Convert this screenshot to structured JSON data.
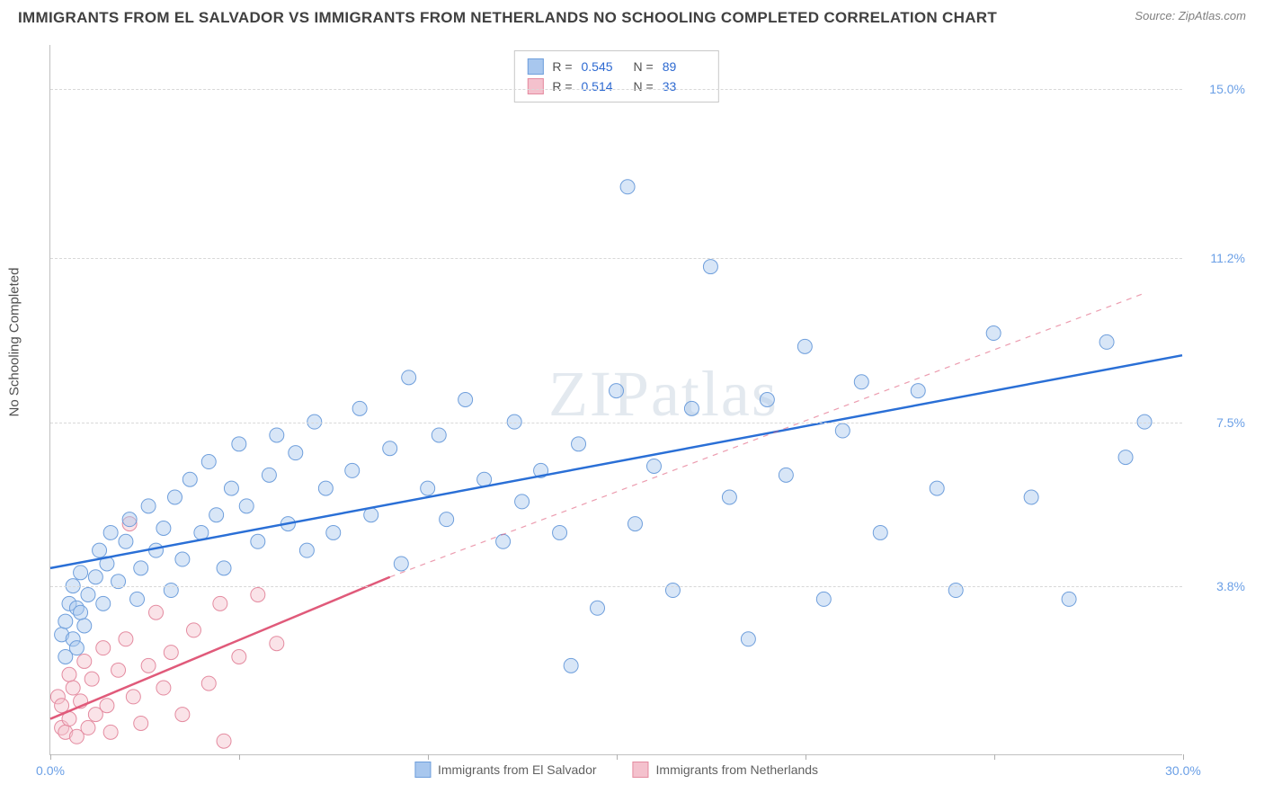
{
  "header": {
    "title": "IMMIGRANTS FROM EL SALVADOR VS IMMIGRANTS FROM NETHERLANDS NO SCHOOLING COMPLETED CORRELATION CHART",
    "source_label": "Source:",
    "source_name": "ZipAtlas.com"
  },
  "chart": {
    "type": "scatter",
    "y_axis_label": "No Schooling Completed",
    "xlim": [
      0,
      30
    ],
    "ylim": [
      0,
      16
    ],
    "x_ticks": [
      0,
      5,
      10,
      15,
      20,
      25,
      30
    ],
    "x_tick_labels_visible": {
      "0": "0.0%",
      "30": "30.0%"
    },
    "y_grid_values": [
      3.8,
      7.5,
      11.2,
      15.0
    ],
    "y_grid_labels": [
      "3.8%",
      "7.5%",
      "11.2%",
      "15.0%"
    ],
    "background_color": "#ffffff",
    "grid_color": "#d8d8d8",
    "axis_color": "#c0c0c0",
    "tick_label_color": "#6a9fe6",
    "marker_radius": 8,
    "marker_opacity": 0.45,
    "line_width": 2.5
  },
  "watermark": {
    "text_a": "ZIP",
    "text_b": "atlas"
  },
  "series": [
    {
      "key": "el_salvador",
      "label": "Immigrants from El Salvador",
      "marker_fill": "#a8c7ee",
      "marker_stroke": "#6f9fdc",
      "line_color": "#2a6fd6",
      "r_value": "0.545",
      "n_value": "89",
      "trend": {
        "x1": 0,
        "y1": 4.2,
        "x2": 30,
        "y2": 9.0,
        "dashed": false
      },
      "extend": {
        "x1": 30,
        "y1": 9.0,
        "x2": 30,
        "y2": 9.0
      },
      "points": [
        [
          0.3,
          2.7
        ],
        [
          0.4,
          2.2
        ],
        [
          0.4,
          3.0
        ],
        [
          0.5,
          3.4
        ],
        [
          0.6,
          2.6
        ],
        [
          0.6,
          3.8
        ],
        [
          0.7,
          2.4
        ],
        [
          0.7,
          3.3
        ],
        [
          0.8,
          3.2
        ],
        [
          0.8,
          4.1
        ],
        [
          0.9,
          2.9
        ],
        [
          1.0,
          3.6
        ],
        [
          1.2,
          4.0
        ],
        [
          1.3,
          4.6
        ],
        [
          1.4,
          3.4
        ],
        [
          1.5,
          4.3
        ],
        [
          1.6,
          5.0
        ],
        [
          1.8,
          3.9
        ],
        [
          2.0,
          4.8
        ],
        [
          2.1,
          5.3
        ],
        [
          2.3,
          3.5
        ],
        [
          2.4,
          4.2
        ],
        [
          2.6,
          5.6
        ],
        [
          2.8,
          4.6
        ],
        [
          3.0,
          5.1
        ],
        [
          3.2,
          3.7
        ],
        [
          3.3,
          5.8
        ],
        [
          3.5,
          4.4
        ],
        [
          3.7,
          6.2
        ],
        [
          4.0,
          5.0
        ],
        [
          4.2,
          6.6
        ],
        [
          4.4,
          5.4
        ],
        [
          4.6,
          4.2
        ],
        [
          4.8,
          6.0
        ],
        [
          5.0,
          7.0
        ],
        [
          5.2,
          5.6
        ],
        [
          5.5,
          4.8
        ],
        [
          5.8,
          6.3
        ],
        [
          6.0,
          7.2
        ],
        [
          6.3,
          5.2
        ],
        [
          6.5,
          6.8
        ],
        [
          6.8,
          4.6
        ],
        [
          7.0,
          7.5
        ],
        [
          7.3,
          6.0
        ],
        [
          7.5,
          5.0
        ],
        [
          8.0,
          6.4
        ],
        [
          8.2,
          7.8
        ],
        [
          8.5,
          5.4
        ],
        [
          9.0,
          6.9
        ],
        [
          9.3,
          4.3
        ],
        [
          9.5,
          8.5
        ],
        [
          10.0,
          6.0
        ],
        [
          10.3,
          7.2
        ],
        [
          10.5,
          5.3
        ],
        [
          11.0,
          8.0
        ],
        [
          11.5,
          6.2
        ],
        [
          12.0,
          4.8
        ],
        [
          12.3,
          7.5
        ],
        [
          12.5,
          5.7
        ],
        [
          13.0,
          6.4
        ],
        [
          13.5,
          5.0
        ],
        [
          13.8,
          2.0
        ],
        [
          14.0,
          7.0
        ],
        [
          14.5,
          3.3
        ],
        [
          15.0,
          8.2
        ],
        [
          15.3,
          12.8
        ],
        [
          15.5,
          5.2
        ],
        [
          16.0,
          6.5
        ],
        [
          16.5,
          3.7
        ],
        [
          17.0,
          7.8
        ],
        [
          17.5,
          11.0
        ],
        [
          18.0,
          5.8
        ],
        [
          18.5,
          2.6
        ],
        [
          19.0,
          8.0
        ],
        [
          19.5,
          6.3
        ],
        [
          20.0,
          9.2
        ],
        [
          20.5,
          3.5
        ],
        [
          21.0,
          7.3
        ],
        [
          21.5,
          8.4
        ],
        [
          22.0,
          5.0
        ],
        [
          23.0,
          8.2
        ],
        [
          23.5,
          6.0
        ],
        [
          24.0,
          3.7
        ],
        [
          25.0,
          9.5
        ],
        [
          26.0,
          5.8
        ],
        [
          27.0,
          3.5
        ],
        [
          28.0,
          9.3
        ],
        [
          28.5,
          6.7
        ],
        [
          29.0,
          7.5
        ]
      ]
    },
    {
      "key": "netherlands",
      "label": "Immigrants from Netherlands",
      "marker_fill": "#f4c1cd",
      "marker_stroke": "#e48ba0",
      "line_color": "#e05a7a",
      "r_value": "0.514",
      "n_value": "33",
      "trend": {
        "x1": 0,
        "y1": 0.8,
        "x2": 9,
        "y2": 4.0,
        "dashed": false
      },
      "extend": {
        "x1": 9,
        "y1": 4.0,
        "x2": 29,
        "y2": 10.4,
        "dashed": true
      },
      "points": [
        [
          0.2,
          1.3
        ],
        [
          0.3,
          0.6
        ],
        [
          0.3,
          1.1
        ],
        [
          0.4,
          0.5
        ],
        [
          0.5,
          1.8
        ],
        [
          0.5,
          0.8
        ],
        [
          0.6,
          1.5
        ],
        [
          0.7,
          0.4
        ],
        [
          0.8,
          1.2
        ],
        [
          0.9,
          2.1
        ],
        [
          1.0,
          0.6
        ],
        [
          1.1,
          1.7
        ],
        [
          1.2,
          0.9
        ],
        [
          1.4,
          2.4
        ],
        [
          1.5,
          1.1
        ],
        [
          1.6,
          0.5
        ],
        [
          1.8,
          1.9
        ],
        [
          2.0,
          2.6
        ],
        [
          2.1,
          5.2
        ],
        [
          2.2,
          1.3
        ],
        [
          2.4,
          0.7
        ],
        [
          2.6,
          2.0
        ],
        [
          2.8,
          3.2
        ],
        [
          3.0,
          1.5
        ],
        [
          3.2,
          2.3
        ],
        [
          3.5,
          0.9
        ],
        [
          3.8,
          2.8
        ],
        [
          4.2,
          1.6
        ],
        [
          4.5,
          3.4
        ],
        [
          4.6,
          0.3
        ],
        [
          5.0,
          2.2
        ],
        [
          5.5,
          3.6
        ],
        [
          6.0,
          2.5
        ]
      ]
    }
  ],
  "legend_labels": {
    "R": "R =",
    "N": "N ="
  }
}
